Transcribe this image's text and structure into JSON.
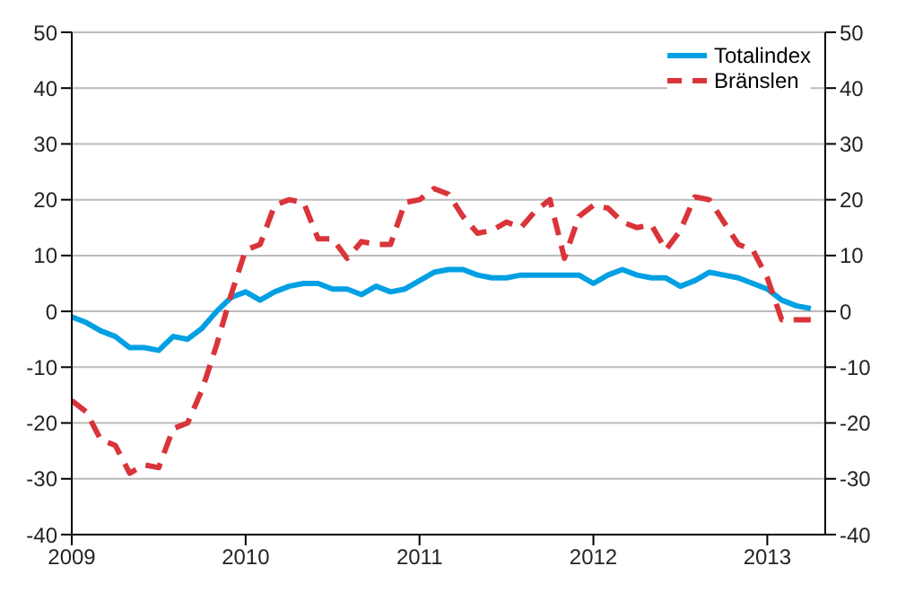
{
  "chart_data": {
    "type": "line",
    "x": [
      "2009-01",
      "2009-02",
      "2009-03",
      "2009-04",
      "2009-05",
      "2009-06",
      "2009-07",
      "2009-08",
      "2009-09",
      "2009-10",
      "2009-11",
      "2009-12",
      "2010-01",
      "2010-02",
      "2010-03",
      "2010-04",
      "2010-05",
      "2010-06",
      "2010-07",
      "2010-08",
      "2010-09",
      "2010-10",
      "2010-11",
      "2010-12",
      "2011-01",
      "2011-02",
      "2011-03",
      "2011-04",
      "2011-05",
      "2011-06",
      "2011-07",
      "2011-08",
      "2011-09",
      "2011-10",
      "2011-11",
      "2011-12",
      "2012-01",
      "2012-02",
      "2012-03",
      "2012-04",
      "2012-05",
      "2012-06",
      "2012-07",
      "2012-08",
      "2012-09",
      "2012-10",
      "2012-11",
      "2012-12",
      "2013-01",
      "2013-02",
      "2013-03",
      "2013-04"
    ],
    "series": [
      {
        "name": "Totalindex",
        "color": "#00a0e3",
        "line_style": "solid",
        "values": [
          -1,
          -2,
          -3.5,
          -4.5,
          -6.5,
          -6.5,
          -7,
          -4.5,
          -5,
          -3,
          0,
          2.5,
          3.5,
          2,
          3.5,
          4.5,
          5,
          5,
          4,
          4,
          3,
          4.5,
          3.5,
          4,
          5.5,
          7,
          7.5,
          7.5,
          6.5,
          6,
          6,
          6.5,
          6.5,
          6.5,
          6.5,
          6.5,
          5,
          6.5,
          7.5,
          6.5,
          6,
          6,
          4.5,
          5.5,
          7,
          6.5,
          6,
          5,
          4,
          2,
          1,
          0.5
        ]
      },
      {
        "name": "Bränslen",
        "color": "#d9343a",
        "line_style": "dashed",
        "values": [
          -16,
          -18,
          -23,
          -24,
          -29,
          -27.5,
          -28,
          -21,
          -20,
          -14,
          -6,
          3,
          11,
          12,
          19,
          20,
          19.5,
          13,
          13,
          9.5,
          12.5,
          12,
          12,
          19.5,
          20,
          22,
          21,
          17,
          14,
          14.5,
          16,
          15,
          18,
          20,
          9.5,
          17,
          19,
          18.5,
          16,
          15,
          15.5,
          11,
          14.5,
          20.5,
          20,
          16,
          12,
          11,
          6,
          -1.5,
          -1.5,
          -1.5
        ]
      }
    ],
    "xlim": [
      "2009-01",
      "2013-05"
    ],
    "xticks": [
      "2009",
      "2010",
      "2011",
      "2012",
      "2013"
    ],
    "ylim": [
      -40,
      50
    ],
    "yticks": [
      -40,
      -30,
      -20,
      -10,
      0,
      10,
      20,
      30,
      40,
      50
    ],
    "y2lim": [
      -40,
      50
    ],
    "y2ticks": [
      -40,
      -30,
      -20,
      -10,
      0,
      10,
      20,
      30,
      40,
      50
    ],
    "grid": "y",
    "legend": "top right",
    "marker": "none"
  }
}
